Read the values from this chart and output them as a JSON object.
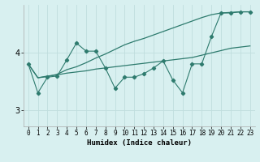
{
  "xlabel": "Humidex (Indice chaleur)",
  "bg_color": "#d8f0f0",
  "grid_color": "#c0dede",
  "line_color": "#2e7b6e",
  "xlim": [
    -0.5,
    23.5
  ],
  "ylim": [
    2.72,
    4.82
  ],
  "yticks": [
    3,
    4
  ],
  "xticks": [
    0,
    1,
    2,
    3,
    4,
    5,
    6,
    7,
    8,
    9,
    10,
    11,
    12,
    13,
    14,
    15,
    16,
    17,
    18,
    19,
    20,
    21,
    22,
    23
  ],
  "line1_x": [
    0,
    1,
    2,
    3,
    4,
    5,
    6,
    7,
    8,
    9,
    10,
    11,
    12,
    13,
    14,
    15,
    16,
    17,
    18,
    19,
    20,
    21,
    22,
    23
  ],
  "line1_y": [
    3.8,
    3.56,
    3.59,
    3.61,
    3.64,
    3.66,
    3.68,
    3.71,
    3.73,
    3.75,
    3.77,
    3.79,
    3.81,
    3.83,
    3.85,
    3.87,
    3.89,
    3.91,
    3.95,
    3.99,
    4.03,
    4.07,
    4.09,
    4.11
  ],
  "line2_x": [
    0,
    1,
    2,
    3,
    4,
    5,
    6,
    7,
    8,
    9,
    10,
    11,
    12,
    13,
    14,
    15,
    16,
    17,
    18,
    19,
    20,
    21,
    22,
    23
  ],
  "line2_y": [
    3.8,
    3.56,
    3.58,
    3.62,
    3.7,
    3.75,
    3.82,
    3.9,
    3.97,
    4.05,
    4.13,
    4.19,
    4.24,
    4.3,
    4.36,
    4.42,
    4.48,
    4.54,
    4.6,
    4.65,
    4.68,
    4.69,
    4.7,
    4.7
  ],
  "line3_x": [
    0,
    1,
    2,
    3,
    4,
    5,
    6,
    7,
    8,
    9,
    10,
    11,
    12,
    13,
    14,
    15,
    16,
    17,
    18,
    19,
    20,
    21,
    22,
    23
  ],
  "line3_y": [
    3.8,
    3.3,
    3.57,
    3.59,
    3.87,
    4.16,
    4.02,
    4.02,
    3.73,
    3.38,
    3.57,
    3.57,
    3.63,
    3.73,
    3.85,
    3.52,
    3.3,
    3.8,
    3.8,
    4.27,
    4.68,
    4.68,
    4.7,
    4.7
  ]
}
